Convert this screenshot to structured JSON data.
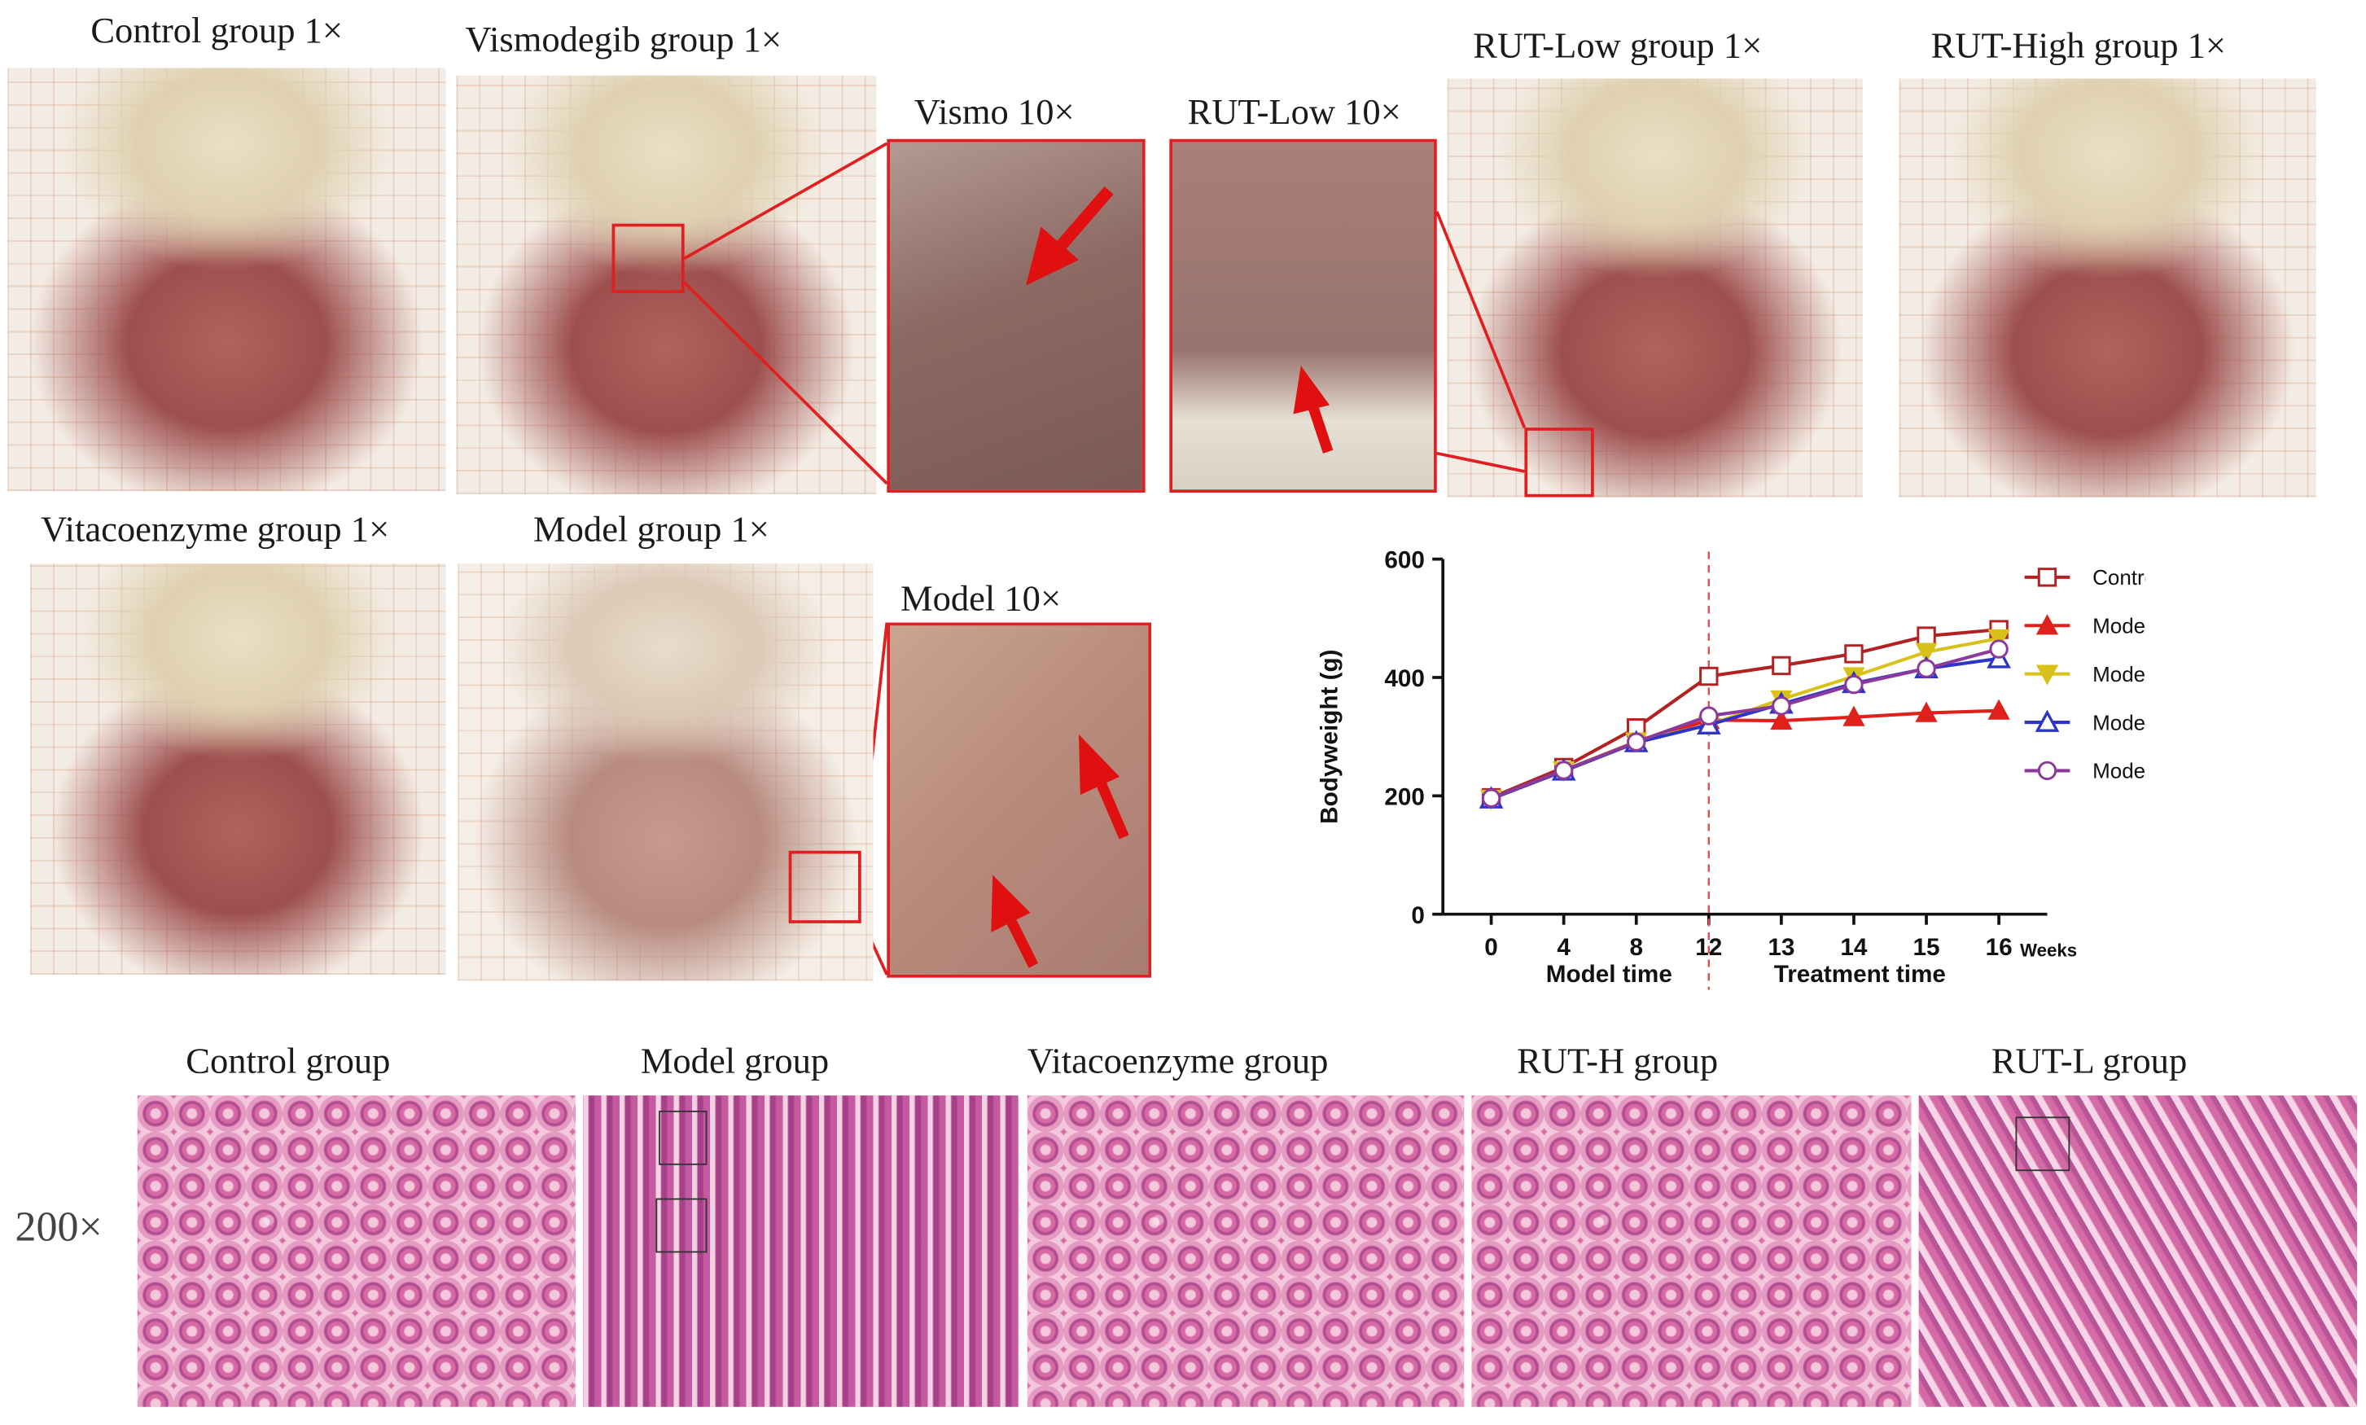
{
  "panels": {
    "control": "Control group  1×",
    "vismodegib": "Vismodegib group  1×",
    "rut_low": "RUT-Low group  1×",
    "rut_high": "RUT-High group  1×",
    "vitacoenzyme": "Vitacoenzyme group 1×",
    "model": "Model group  1×"
  },
  "zooms": {
    "vismo": "Vismo  10×",
    "rut_low": "RUT-Low 10×",
    "model": "Model  10×"
  },
  "histology": {
    "magnification": "200×",
    "labels": [
      "Control group",
      "Model group",
      "Vitacoenzyme group",
      "RUT-H group",
      "RUT-L group"
    ]
  },
  "chart_data": {
    "type": "line",
    "ylabel": "Bodyweight  (g)",
    "x_unit": "Weeks",
    "phase_labels": [
      "Model time",
      "Treatment time"
    ],
    "phase_divider_at": "12",
    "categories": [
      "0",
      "4",
      "8",
      "12",
      "13",
      "14",
      "15",
      "16"
    ],
    "ylim": [
      0,
      600
    ],
    "yticks": [
      0,
      200,
      400,
      600
    ],
    "legend_position": "right",
    "series": [
      {
        "name": "Control+CMC-Na",
        "color": "#b22222",
        "marker": "square-open",
        "values": [
          197,
          248,
          315,
          402,
          420,
          440,
          470,
          481
        ]
      },
      {
        "name": "Model+CMC-Na",
        "color": "#e0201a",
        "marker": "triangle-up",
        "values": [
          195,
          242,
          290,
          328,
          327,
          333,
          340,
          344
        ]
      },
      {
        "name": "Model+RUT-High",
        "color": "#d8c21a",
        "marker": "triangle-down",
        "values": [
          195,
          243,
          292,
          320,
          363,
          402,
          443,
          466
        ]
      },
      {
        "name": "Model+RUT-Low",
        "color": "#2c35c8",
        "marker": "triangle-up-open",
        "values": [
          195,
          242,
          290,
          320,
          355,
          390,
          415,
          432
        ]
      },
      {
        "name": "Model+Vita",
        "color": "#8b3a9b",
        "marker": "circle-open",
        "values": [
          196,
          243,
          291,
          335,
          352,
          388,
          415,
          448
        ]
      }
    ]
  }
}
